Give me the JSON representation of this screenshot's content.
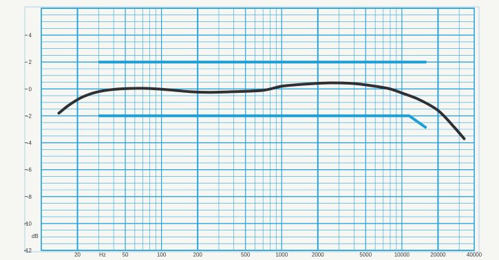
{
  "chart_data": {
    "type": "line",
    "title": "",
    "x_scale": "log",
    "xlim": [
      10,
      40000
    ],
    "ylim": [
      -12,
      6
    ],
    "grid": true,
    "x_unit_label": "Hz",
    "y_unit_label": "dB",
    "x_tick_labels": [
      {
        "value": 20,
        "label": "20"
      },
      {
        "value": 50,
        "label": "50"
      },
      {
        "value": 100,
        "label": "100"
      },
      {
        "value": 200,
        "label": "200"
      },
      {
        "value": 500,
        "label": "500"
      },
      {
        "value": 1000,
        "label": "1000"
      },
      {
        "value": 2000,
        "label": "2000"
      },
      {
        "value": 5000,
        "label": "5000"
      },
      {
        "value": 10000,
        "label": "10000"
      },
      {
        "value": 20000,
        "label": "20000"
      },
      {
        "value": 40000,
        "label": "40000"
      }
    ],
    "y_tick_labels": [
      {
        "value": 4,
        "label": "4"
      },
      {
        "value": 2,
        "label": "2"
      },
      {
        "value": 0,
        "label": "0"
      },
      {
        "value": -2,
        "label": "-2"
      },
      {
        "value": -4,
        "label": "-4"
      },
      {
        "value": -6,
        "label": "-6"
      },
      {
        "value": -8,
        "label": "-8"
      },
      {
        "value": -10,
        "label": "-10"
      },
      {
        "value": -12,
        "label": "-12"
      }
    ],
    "series": [
      {
        "role": "frequency-response",
        "color": "#2e3033",
        "x": [
          14,
          17,
          22,
          30,
          45,
          70,
          110,
          170,
          250,
          400,
          700,
          1000,
          1500,
          2500,
          4000,
          6000,
          8000,
          10000,
          14000,
          20000,
          27000,
          33000
        ],
        "y": [
          -1.8,
          -1.2,
          -0.6,
          -0.2,
          0.0,
          0.05,
          -0.05,
          -0.2,
          -0.25,
          -0.2,
          -0.1,
          0.2,
          0.35,
          0.45,
          0.4,
          0.2,
          0.0,
          -0.3,
          -0.8,
          -1.6,
          -2.8,
          -3.7
        ]
      },
      {
        "role": "upper-tolerance",
        "color": "#1d9fd6",
        "x": [
          30,
          16000
        ],
        "y": [
          2.0,
          2.0
        ]
      },
      {
        "role": "lower-tolerance",
        "color": "#1d9fd6",
        "x": [
          30,
          11500,
          16000
        ],
        "y": [
          -2.0,
          -2.0,
          -2.9
        ]
      }
    ]
  }
}
